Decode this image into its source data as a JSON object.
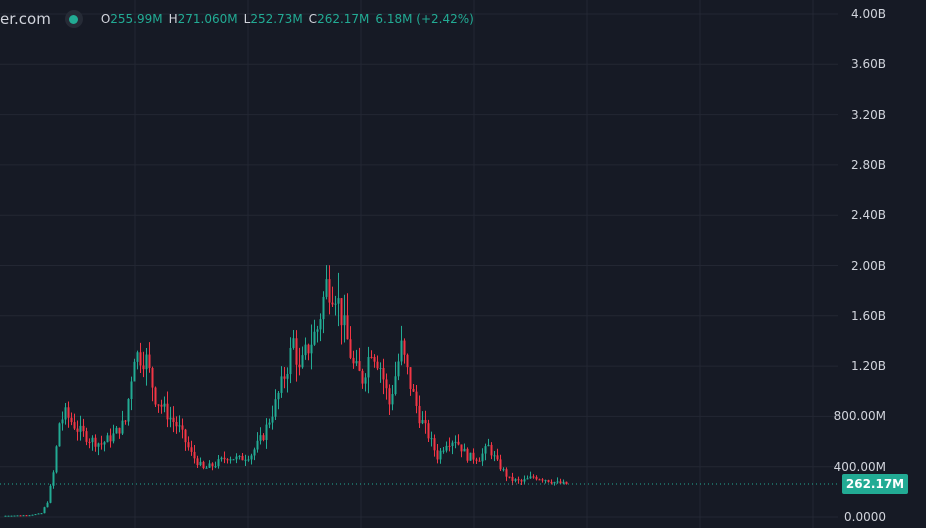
{
  "legend": {
    "site": "er.com",
    "open_label": "O",
    "open": "255.99M",
    "high_label": "H",
    "high": "271.060M",
    "low_label": "L",
    "low": "252.73M",
    "close_label": "C",
    "close": "262.17M",
    "change": "6.18M (+2.42%)"
  },
  "colors": {
    "up": "#22ab94",
    "down": "#f23645",
    "background": "#161a25",
    "grid": "#232733"
  },
  "last_price_tag": "262.17M",
  "chart_data": {
    "type": "candlestick",
    "yaxis_ticks": [
      "4.00B",
      "3.60B",
      "3.20B",
      "2.80B",
      "2.40B",
      "2.00B",
      "1.60B",
      "1.20B",
      "800.00M",
      "400.00M",
      "0.0000"
    ],
    "ylim": [
      0,
      4000000000
    ],
    "grid": true,
    "last_close": 262170000,
    "close_path": [
      [
        0,
        10000000
      ],
      [
        8,
        15000000
      ],
      [
        12,
        30000000
      ],
      [
        14,
        120000000
      ],
      [
        16,
        350000000
      ],
      [
        18,
        750000000
      ],
      [
        20,
        820000000
      ],
      [
        24,
        700000000
      ],
      [
        28,
        620000000
      ],
      [
        32,
        580000000
      ],
      [
        36,
        650000000
      ],
      [
        40,
        760000000
      ],
      [
        43,
        1300000000
      ],
      [
        47,
        1250000000
      ],
      [
        50,
        950000000
      ],
      [
        54,
        820000000
      ],
      [
        58,
        700000000
      ],
      [
        62,
        500000000
      ],
      [
        66,
        380000000
      ],
      [
        70,
        420000000
      ],
      [
        74,
        480000000
      ],
      [
        78,
        460000000
      ],
      [
        82,
        500000000
      ],
      [
        86,
        650000000
      ],
      [
        90,
        900000000
      ],
      [
        94,
        1200000000
      ],
      [
        96,
        1400000000
      ],
      [
        98,
        1150000000
      ],
      [
        100,
        1300000000
      ],
      [
        104,
        1500000000
      ],
      [
        107,
        1850000000
      ],
      [
        110,
        1800000000
      ],
      [
        113,
        1500000000
      ],
      [
        116,
        1200000000
      ],
      [
        119,
        1100000000
      ],
      [
        122,
        1350000000
      ],
      [
        125,
        1200000000
      ],
      [
        128,
        900000000
      ],
      [
        132,
        1350000000
      ],
      [
        135,
        1050000000
      ],
      [
        138,
        800000000
      ],
      [
        141,
        650000000
      ],
      [
        144,
        480000000
      ],
      [
        147,
        600000000
      ],
      [
        150,
        620000000
      ],
      [
        154,
        480000000
      ],
      [
        158,
        470000000
      ],
      [
        161,
        560000000
      ],
      [
        164,
        430000000
      ],
      [
        168,
        300000000
      ],
      [
        172,
        280000000
      ],
      [
        176,
        320000000
      ],
      [
        180,
        300000000
      ],
      [
        184,
        270000000
      ],
      [
        187,
        262170000
      ]
    ]
  }
}
